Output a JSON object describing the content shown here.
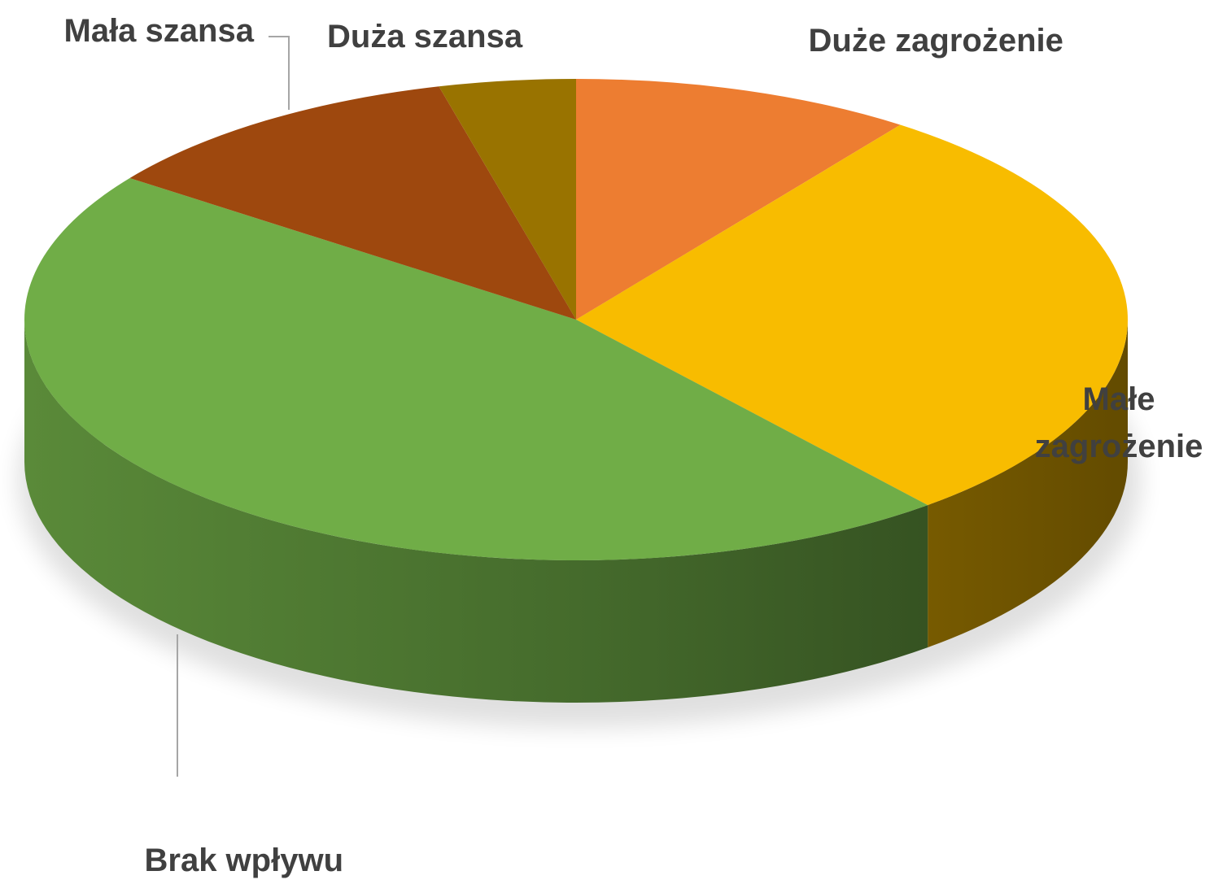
{
  "chart_data": {
    "type": "pie",
    "categories": [
      "Duże zagrożenie",
      "Małe zagrożenie",
      "Brak wpływu",
      "Mała szansa",
      "Duża szansa"
    ],
    "values": [
      10,
      29,
      46,
      11,
      4
    ],
    "colors": [
      "#ED7D31",
      "#F8BC00",
      "#70AD47",
      "#9E480E",
      "#997300"
    ],
    "legend": false
  }
}
